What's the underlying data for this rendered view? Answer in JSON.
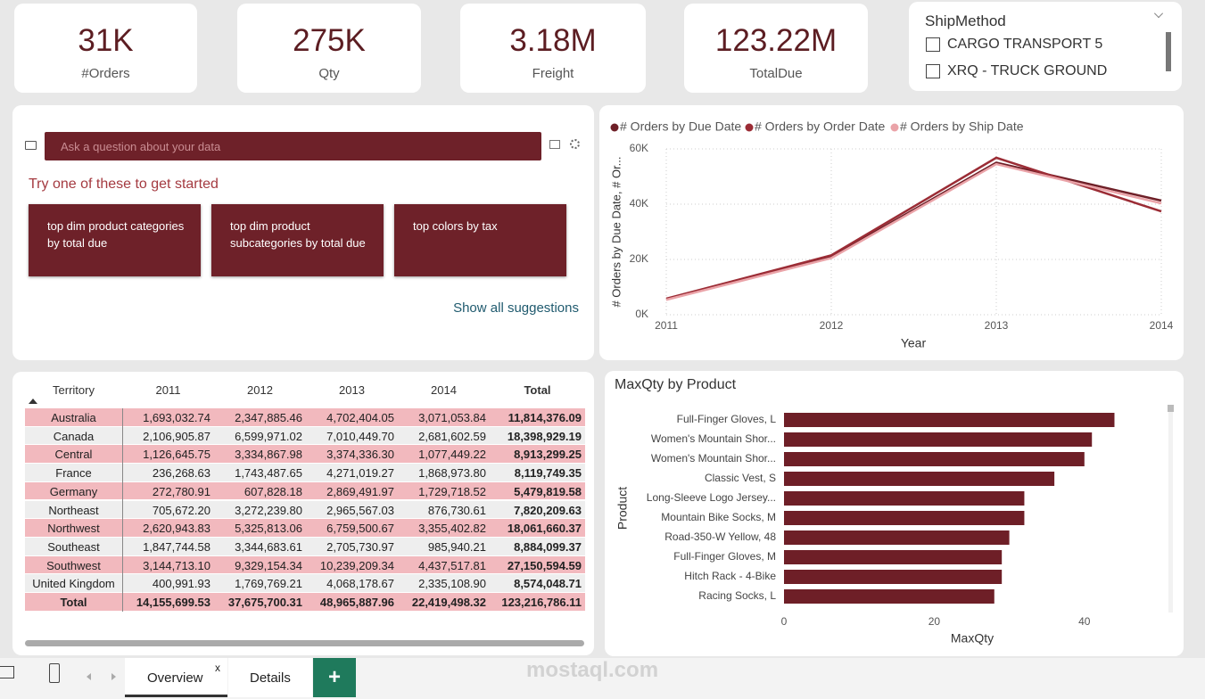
{
  "kpis": [
    {
      "value": "31K",
      "label": "#Orders"
    },
    {
      "value": "275K",
      "label": "Qty"
    },
    {
      "value": "3.18M",
      "label": "Freight"
    },
    {
      "value": "123.22M",
      "label": "TotalDue"
    }
  ],
  "slicer": {
    "title": "ShipMethod",
    "options": [
      "CARGO TRANSPORT 5",
      "XRQ - TRUCK GROUND"
    ]
  },
  "qa": {
    "placeholder": "Ask a question about your data",
    "prompt": "Try one of these to get started",
    "suggestions": [
      "top dim product categories by total due",
      "top dim product subcategories by total due",
      "top colors by tax"
    ],
    "show_all": "Show all suggestions"
  },
  "table": {
    "columns": [
      "Territory",
      "2011",
      "2012",
      "2013",
      "2014",
      "Total"
    ],
    "rows": [
      [
        "Australia",
        "1,693,032.74",
        "2,347,885.46",
        "4,702,404.05",
        "3,071,053.84",
        "11,814,376.09"
      ],
      [
        "Canada",
        "2,106,905.87",
        "6,599,971.02",
        "7,010,449.70",
        "2,681,602.59",
        "18,398,929.19"
      ],
      [
        "Central",
        "1,126,645.75",
        "3,334,867.98",
        "3,374,336.30",
        "1,077,449.22",
        "8,913,299.25"
      ],
      [
        "France",
        "236,268.63",
        "1,743,487.65",
        "4,271,019.27",
        "1,868,973.80",
        "8,119,749.35"
      ],
      [
        "Germany",
        "272,780.91",
        "607,828.18",
        "2,869,491.97",
        "1,729,718.52",
        "5,479,819.58"
      ],
      [
        "Northeast",
        "705,672.20",
        "3,272,239.80",
        "2,965,567.03",
        "876,730.61",
        "7,820,209.63"
      ],
      [
        "Northwest",
        "2,620,943.83",
        "5,325,813.06",
        "6,759,500.67",
        "3,355,402.82",
        "18,061,660.37"
      ],
      [
        "Southeast",
        "1,847,744.58",
        "3,344,683.61",
        "2,705,730.97",
        "985,940.21",
        "8,884,099.37"
      ],
      [
        "Southwest",
        "3,144,713.10",
        "9,329,154.34",
        "10,239,209.34",
        "4,437,517.81",
        "27,150,594.59"
      ],
      [
        "United Kingdom",
        "400,991.93",
        "1,769,769.21",
        "4,068,178.67",
        "2,335,108.90",
        "8,574,048.71"
      ]
    ],
    "total": [
      "Total",
      "14,155,699.53",
      "37,675,700.31",
      "48,965,887.96",
      "22,419,498.32",
      "123,216,786.11"
    ]
  },
  "chart_data": [
    {
      "type": "line",
      "y_label": "# Orders by Due Date, # Or...",
      "x_label": "Year",
      "x": [
        2011,
        2012,
        2013,
        2014
      ],
      "xlim": [
        2011,
        2014
      ],
      "xticks": [
        2011,
        2012,
        2013,
        2014
      ],
      "ylim": [
        0,
        60000
      ],
      "yticks": [
        {
          "value": 0,
          "label": "0K"
        },
        {
          "value": 20000,
          "label": "20K"
        },
        {
          "value": 40000,
          "label": "40K"
        },
        {
          "value": 60000,
          "label": "60K"
        }
      ],
      "grid": true,
      "series": [
        {
          "name": "# Orders by Due Date",
          "color": "#6e1f27",
          "values": [
            5500,
            21000,
            55000,
            41300
          ]
        },
        {
          "name": "# Orders by Order Date",
          "color": "#9b2c35",
          "values": [
            5800,
            21500,
            56800,
            37400
          ]
        },
        {
          "name": "# Orders by Ship Date",
          "color": "#eaa3a8",
          "values": [
            5400,
            20500,
            54500,
            40300
          ]
        }
      ]
    },
    {
      "type": "barh",
      "title": "MaxQty by Product",
      "x_label": "MaxQty",
      "y_label": "Product",
      "color": "#6e1f27",
      "categories": [
        "Full-Finger Gloves, L",
        "Women's Mountain Shor...",
        "Women's Mountain Shor...",
        "Classic Vest, S",
        "Long-Sleeve Logo Jersey...",
        "Mountain Bike Socks, M",
        "Road-350-W Yellow, 48",
        "Full-Finger Gloves, M",
        "Hitch Rack - 4-Bike",
        "Racing Socks, L"
      ],
      "values": [
        44,
        41,
        40,
        36,
        32,
        32,
        30,
        29,
        29,
        28
      ],
      "xlim": [
        0,
        50
      ],
      "xticks": [
        0,
        20,
        40
      ]
    }
  ],
  "tabs": [
    "Overview",
    "Details"
  ],
  "tab_close": "x",
  "add_page": "+",
  "watermark": "mostaql.com"
}
